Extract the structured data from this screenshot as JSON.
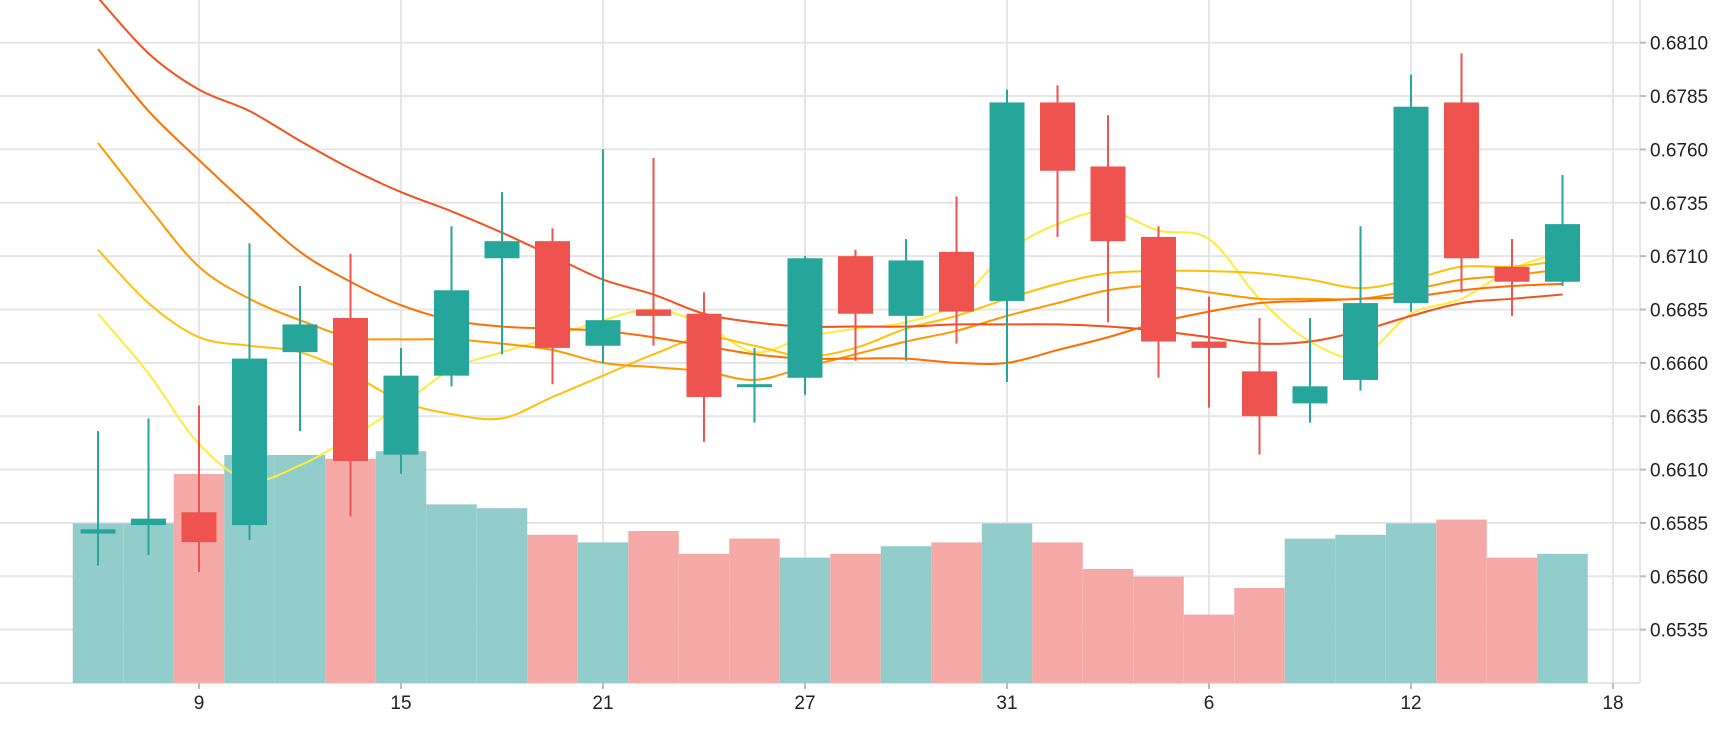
{
  "chart_data": {
    "type": "candlestick",
    "x_tick_labels": [
      {
        "label": "9",
        "index": 2
      },
      {
        "label": "15",
        "index": 6
      },
      {
        "label": "21",
        "index": 10
      },
      {
        "label": "27",
        "index": 14
      },
      {
        "label": "31",
        "index": 18
      },
      {
        "label": "6",
        "index": 22
      },
      {
        "label": "12",
        "index": 26
      },
      {
        "label": "18",
        "index": 30
      }
    ],
    "y_tick_labels": [
      "0.6810",
      "0.6785",
      "0.6760",
      "0.6735",
      "0.6710",
      "0.6685",
      "0.6660",
      "0.6635",
      "0.6610",
      "0.6585",
      "0.6560",
      "0.6535"
    ],
    "ylim": [
      0.651,
      0.683
    ],
    "grid": true,
    "colors": {
      "up": "#26a69a",
      "down": "#ef5350",
      "volume_up": "#92cdcb",
      "volume_down": "#f5aaa8",
      "grid": "#e6e6e6",
      "ma_colors": [
        "#ffeb3b",
        "#ffc107",
        "#ff9800",
        "#ff6d00",
        "#f4511e"
      ]
    },
    "candles": [
      {
        "open": 0.658,
        "high": 0.6628,
        "low": 0.6565,
        "close": 0.6582
      },
      {
        "open": 0.6584,
        "high": 0.6634,
        "low": 0.657,
        "close": 0.6587
      },
      {
        "open": 0.659,
        "high": 0.664,
        "low": 0.6562,
        "close": 0.6576
      },
      {
        "open": 0.6584,
        "high": 0.6716,
        "low": 0.6577,
        "close": 0.6662
      },
      {
        "open": 0.6665,
        "high": 0.6696,
        "low": 0.6628,
        "close": 0.6678
      },
      {
        "open": 0.6681,
        "high": 0.6711,
        "low": 0.6588,
        "close": 0.6614
      },
      {
        "open": 0.6617,
        "high": 0.6667,
        "low": 0.6608,
        "close": 0.6654
      },
      {
        "open": 0.6654,
        "high": 0.6724,
        "low": 0.6649,
        "close": 0.6694
      },
      {
        "open": 0.6709,
        "high": 0.674,
        "low": 0.6664,
        "close": 0.6717
      },
      {
        "open": 0.6717,
        "high": 0.6723,
        "low": 0.665,
        "close": 0.6667
      },
      {
        "open": 0.6668,
        "high": 0.676,
        "low": 0.666,
        "close": 0.668
      },
      {
        "open": 0.6685,
        "high": 0.6756,
        "low": 0.6668,
        "close": 0.6682
      },
      {
        "open": 0.6683,
        "high": 0.6693,
        "low": 0.6623,
        "close": 0.6644
      },
      {
        "open": 0.665,
        "high": 0.6667,
        "low": 0.6632,
        "close": 0.665
      },
      {
        "open": 0.6653,
        "high": 0.671,
        "low": 0.6645,
        "close": 0.6709
      },
      {
        "open": 0.671,
        "high": 0.6713,
        "low": 0.6661,
        "close": 0.6683
      },
      {
        "open": 0.6682,
        "high": 0.6718,
        "low": 0.6661,
        "close": 0.6708
      },
      {
        "open": 0.6712,
        "high": 0.6738,
        "low": 0.6669,
        "close": 0.6684
      },
      {
        "open": 0.6689,
        "high": 0.6788,
        "low": 0.6651,
        "close": 0.6782
      },
      {
        "open": 0.6782,
        "high": 0.679,
        "low": 0.6719,
        "close": 0.675
      },
      {
        "open": 0.6752,
        "high": 0.6776,
        "low": 0.6679,
        "close": 0.6717
      },
      {
        "open": 0.6719,
        "high": 0.6724,
        "low": 0.6653,
        "close": 0.667
      },
      {
        "open": 0.667,
        "high": 0.6691,
        "low": 0.6639,
        "close": 0.6667
      },
      {
        "open": 0.6656,
        "high": 0.6681,
        "low": 0.6617,
        "close": 0.6635
      },
      {
        "open": 0.6641,
        "high": 0.6681,
        "low": 0.6632,
        "close": 0.6649
      },
      {
        "open": 0.6652,
        "high": 0.6724,
        "low": 0.6647,
        "close": 0.6688
      },
      {
        "open": 0.6688,
        "high": 0.6795,
        "low": 0.6684,
        "close": 0.678
      },
      {
        "open": 0.6782,
        "high": 0.6805,
        "low": 0.6693,
        "close": 0.6709
      },
      {
        "open": 0.6705,
        "high": 0.6718,
        "low": 0.6682,
        "close": 0.6698
      },
      {
        "open": 0.6698,
        "high": 0.6748,
        "low": 0.6696,
        "close": 0.6725
      }
    ],
    "volume": [
      {
        "value": 0.42,
        "up": true
      },
      {
        "value": 0.42,
        "up": true
      },
      {
        "value": 0.55,
        "up": false
      },
      {
        "value": 0.6,
        "up": true
      },
      {
        "value": 0.6,
        "up": true
      },
      {
        "value": 0.59,
        "up": false
      },
      {
        "value": 0.61,
        "up": true
      },
      {
        "value": 0.47,
        "up": true
      },
      {
        "value": 0.46,
        "up": true
      },
      {
        "value": 0.39,
        "up": false
      },
      {
        "value": 0.37,
        "up": true
      },
      {
        "value": 0.4,
        "up": false
      },
      {
        "value": 0.34,
        "up": false
      },
      {
        "value": 0.38,
        "up": false
      },
      {
        "value": 0.33,
        "up": true
      },
      {
        "value": 0.34,
        "up": false
      },
      {
        "value": 0.36,
        "up": true
      },
      {
        "value": 0.37,
        "up": false
      },
      {
        "value": 0.42,
        "up": true
      },
      {
        "value": 0.37,
        "up": false
      },
      {
        "value": 0.3,
        "up": false
      },
      {
        "value": 0.28,
        "up": false
      },
      {
        "value": 0.18,
        "up": false
      },
      {
        "value": 0.25,
        "up": false
      },
      {
        "value": 0.38,
        "up": true
      },
      {
        "value": 0.39,
        "up": true
      },
      {
        "value": 0.42,
        "up": true
      },
      {
        "value": 0.43,
        "up": false
      },
      {
        "value": 0.33,
        "up": false
      },
      {
        "value": 0.34,
        "up": true
      }
    ],
    "moving_averages": [
      {
        "values": [
          0.6683,
          0.6655,
          0.6622,
          0.6605,
          0.6612,
          0.6625,
          0.664,
          0.6657,
          0.6665,
          0.6672,
          0.668,
          0.6685,
          0.6678,
          0.6665,
          0.6672,
          0.6676,
          0.6679,
          0.6688,
          0.6712,
          0.6725,
          0.6731,
          0.6722,
          0.6718,
          0.669,
          0.667,
          0.6663,
          0.6683,
          0.669,
          0.6704,
          0.6712
        ]
      },
      {
        "values": [
          0.6713,
          0.6688,
          0.6672,
          0.6668,
          0.6665,
          0.6655,
          0.6642,
          0.6636,
          0.6634,
          0.6644,
          0.6654,
          0.6664,
          0.6672,
          0.6668,
          0.6663,
          0.6667,
          0.6676,
          0.6682,
          0.669,
          0.6697,
          0.6702,
          0.6703,
          0.6703,
          0.6702,
          0.6699,
          0.6695,
          0.6699,
          0.6705,
          0.6705,
          0.6708
        ]
      },
      {
        "values": [
          0.6763,
          0.6733,
          0.6705,
          0.669,
          0.668,
          0.6672,
          0.6671,
          0.6671,
          0.6669,
          0.6666,
          0.666,
          0.6658,
          0.6656,
          0.6652,
          0.6658,
          0.6664,
          0.667,
          0.6675,
          0.6682,
          0.6688,
          0.6694,
          0.6696,
          0.6693,
          0.669,
          0.669,
          0.669,
          0.6694,
          0.6699,
          0.6701,
          0.6704
        ]
      },
      {
        "values": [
          0.6807,
          0.6778,
          0.6755,
          0.6733,
          0.6712,
          0.6698,
          0.6687,
          0.668,
          0.6677,
          0.6676,
          0.6675,
          0.6672,
          0.6668,
          0.6664,
          0.6662,
          0.6662,
          0.6662,
          0.666,
          0.666,
          0.6666,
          0.6672,
          0.6679,
          0.6684,
          0.6688,
          0.6689,
          0.669,
          0.6691,
          0.6694,
          0.6696,
          0.6697
        ]
      },
      {
        "values": [
          0.6831,
          0.6805,
          0.6788,
          0.6778,
          0.6764,
          0.6751,
          0.674,
          0.6731,
          0.6721,
          0.671,
          0.6699,
          0.6692,
          0.6683,
          0.6679,
          0.6677,
          0.6677,
          0.6677,
          0.6678,
          0.6678,
          0.6678,
          0.6677,
          0.6675,
          0.6672,
          0.6669,
          0.667,
          0.6675,
          0.6682,
          0.6688,
          0.669,
          0.6692
        ]
      }
    ]
  }
}
